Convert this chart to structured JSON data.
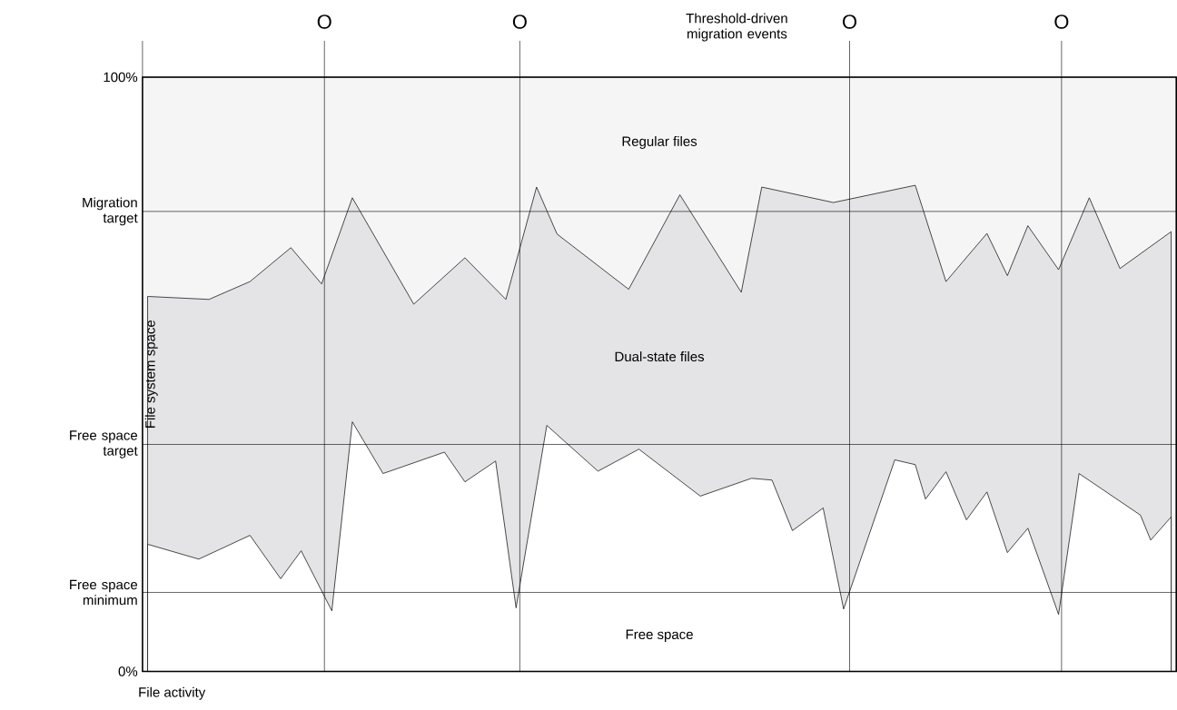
{
  "chart_data": {
    "type": "area",
    "xlabel": "File activity",
    "ylabel": "File system space",
    "annotations": [
      "O",
      "O",
      "Threshold-driven migration events",
      "O",
      "O",
      "Regular files"
    ],
    "categories": [
      null,
      null,
      null,
      null,
      null,
      null,
      null,
      null,
      null,
      null,
      null,
      null,
      null,
      null,
      null,
      null,
      null,
      null,
      null,
      null,
      null,
      null,
      null,
      null,
      null,
      null,
      null,
      null,
      null,
      null,
      null,
      null,
      null,
      null,
      null,
      null,
      null,
      null,
      null,
      null,
      null,
      null,
      null,
      null,
      null,
      null,
      null,
      null,
      null,
      null,
      null,
      null,
      null,
      null,
      null,
      null,
      null,
      null,
      null,
      null,
      null,
      null,
      null,
      null,
      null,
      null,
      null,
      null,
      null,
      null,
      null,
      null,
      null,
      null,
      null,
      null,
      null,
      null,
      null,
      null,
      null,
      null,
      null,
      null,
      null,
      null,
      null,
      null,
      null,
      null,
      null,
      null,
      null,
      null,
      null,
      null,
      null,
      null,
      null,
      null,
      null
    ],
    "ylim": [
      0,
      100
    ],
    "yticks": [
      {
        "value": 0,
        "label": "0%"
      },
      {
        "value": 13.3,
        "label": "Free space minimum"
      },
      {
        "value": 38.2,
        "label": "Free space target"
      },
      {
        "value": 77.4,
        "label": "Migration target"
      },
      {
        "value": 100,
        "label": "100%"
      }
    ],
    "tick_labels": "y",
    "grid": "y",
    "series": [
      {
        "name": "Dual-state files",
        "color": "#e4e4e6",
        "values": [
          63.1,
          null,
          null,
          null,
          null,
          null,
          62.6,
          null,
          null,
          null,
          65.6,
          null,
          null,
          null,
          71.3,
          null,
          null,
          65.2,
          null,
          null,
          79.7,
          null,
          null,
          null,
          null,
          null,
          61.8,
          null,
          null,
          null,
          null,
          69.6,
          null,
          null,
          null,
          62.6,
          null,
          null,
          81.5,
          null,
          73.6,
          null,
          null,
          null,
          null,
          null,
          null,
          64.3,
          null,
          null,
          null,
          null,
          80.2,
          null,
          null,
          null,
          null,
          null,
          63.8,
          null,
          81.5,
          null,
          null,
          null,
          null,
          null,
          null,
          78.9,
          null,
          null,
          null,
          null,
          null,
          null,
          null,
          81.8,
          null,
          null,
          65.6,
          null,
          null,
          null,
          73.7,
          null,
          66.6,
          null,
          75.0,
          null,
          null,
          67.6,
          null,
          null,
          79.7,
          null,
          null,
          67.8,
          null,
          null,
          null,
          null,
          74.0
        ]
      },
      {
        "name": "Free space",
        "color": "#ffffff",
        "values": [
          21.4,
          null,
          null,
          null,
          null,
          18.9,
          null,
          null,
          null,
          null,
          22.9,
          null,
          null,
          15.6,
          null,
          20.3,
          null,
          null,
          10.2,
          null,
          42.0,
          null,
          null,
          33.3,
          null,
          null,
          null,
          null,
          null,
          36.9,
          null,
          31.9,
          null,
          null,
          35.4,
          null,
          10.7,
          null,
          null,
          41.4,
          null,
          null,
          null,
          null,
          33.7,
          null,
          null,
          null,
          37.4,
          null,
          null,
          null,
          null,
          null,
          29.5,
          null,
          null,
          null,
          null,
          32.5,
          null,
          32.2,
          null,
          23.7,
          null,
          null,
          27.5,
          null,
          10.5,
          null,
          null,
          null,
          null,
          35.6,
          null,
          34.8,
          29.0,
          null,
          33.6,
          null,
          25.5,
          null,
          30.2,
          null,
          20.0,
          null,
          24.1,
          null,
          null,
          9.6,
          null,
          33.3,
          null,
          null,
          null,
          null,
          null,
          26.3,
          22.1,
          null,
          26.0
        ]
      }
    ]
  }
}
